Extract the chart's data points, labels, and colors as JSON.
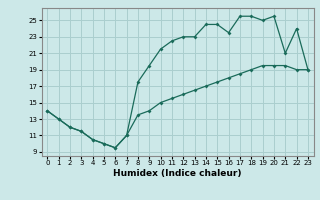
{
  "xlabel": "Humidex (Indice chaleur)",
  "xlim": [
    -0.5,
    23.5
  ],
  "ylim": [
    8.5,
    26.5
  ],
  "xticks": [
    0,
    1,
    2,
    3,
    4,
    5,
    6,
    7,
    8,
    9,
    10,
    11,
    12,
    13,
    14,
    15,
    16,
    17,
    18,
    19,
    20,
    21,
    22,
    23
  ],
  "yticks": [
    9,
    11,
    13,
    15,
    17,
    19,
    21,
    23,
    25
  ],
  "bg_color": "#cce8e8",
  "line_color": "#1a6b5a",
  "grid_color": "#aacece",
  "line1_x": [
    0,
    1,
    2,
    3,
    4,
    5,
    6,
    7,
    8,
    9,
    10,
    11,
    12,
    13,
    14,
    15,
    16,
    17,
    18,
    19,
    20,
    21,
    22,
    23
  ],
  "line1_y": [
    14,
    13,
    12,
    11.5,
    10.5,
    10,
    9.5,
    11,
    17.5,
    19.5,
    21.5,
    22.5,
    23,
    23,
    24.5,
    24.5,
    23.5,
    25.5,
    25.5,
    25,
    25.5,
    21,
    24,
    19
  ],
  "line2_x": [
    0,
    1,
    2,
    3,
    4,
    5,
    6,
    7,
    8,
    9,
    10,
    11,
    12,
    13,
    14,
    15,
    16,
    17,
    18,
    19,
    20,
    21,
    22,
    23
  ],
  "line2_y": [
    14,
    13,
    12,
    11.5,
    10.5,
    10,
    9.5,
    11,
    13.5,
    14,
    15,
    15.5,
    16,
    16.5,
    17,
    17.5,
    18,
    18.5,
    19,
    19.5,
    19.5,
    19.5,
    19,
    19
  ]
}
